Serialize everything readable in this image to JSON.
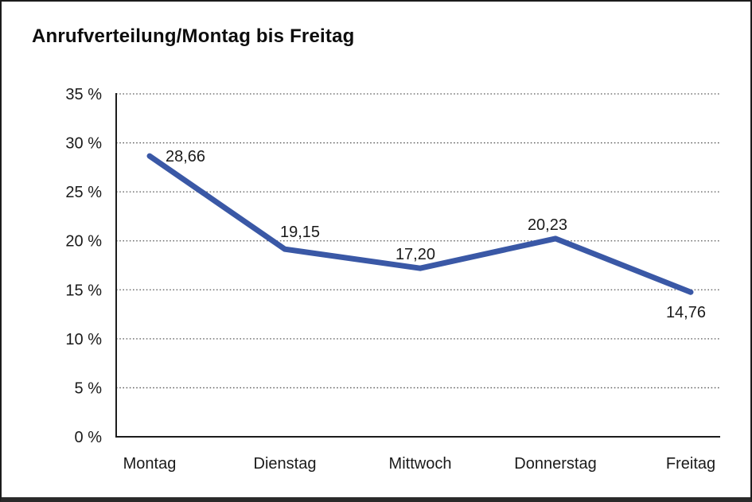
{
  "chart": {
    "title": "Anrufverteilung/Montag bis Freitag"
  },
  "chart_data": {
    "type": "line",
    "title": "Anrufverteilung/Montag bis Freitag",
    "categories": [
      "Montag",
      "Dienstag",
      "Mittwoch",
      "Donnerstag",
      "Freitag"
    ],
    "series": [
      {
        "name": "Anrufverteilung",
        "values": [
          28.66,
          19.15,
          17.2,
          20.23,
          14.76
        ]
      }
    ],
    "data_labels": [
      "28,66",
      "19,15",
      "17,20",
      "20,23",
      "14,76"
    ],
    "xlabel": "",
    "ylabel": "",
    "ylim": [
      0,
      35
    ],
    "ytick_step": 5,
    "ytick_labels": [
      "0 %",
      "5 %",
      "10 %",
      "15 %",
      "20 %",
      "25 %",
      "30 %",
      "35 %"
    ],
    "grid": "horizontal-dotted",
    "legend": "none",
    "colors": {
      "line": "#3A58A6",
      "axis": "#1c1c1c",
      "gridline": "#5a5a5a",
      "text": "#1a1a1a"
    }
  }
}
